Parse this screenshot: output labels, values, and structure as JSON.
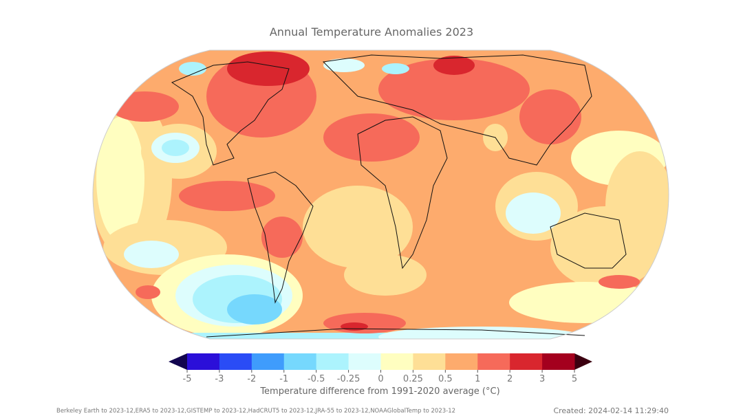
{
  "title": "Annual Temperature Anomalies 2023",
  "colorbar": {
    "label": "Temperature difference from 1991-2020 average (°C)",
    "ticks": [
      "-5",
      "-3",
      "-2",
      "-1",
      "-0.5",
      "-0.25",
      "0",
      "0.25",
      "0.5",
      "1",
      "2",
      "3",
      "5"
    ],
    "colors": [
      "#2b0fd9",
      "#2a4cf6",
      "#3f9cfc",
      "#76d8fd",
      "#acf3fd",
      "#ddfdfd",
      "#fffec0",
      "#fedf96",
      "#fdab6d",
      "#f66a5a",
      "#d9262e",
      "#a4001e"
    ],
    "under_color": "#12054f",
    "over_color": "#3c0010"
  },
  "footer": {
    "sources": "Berkeley Earth to 2023-12,ERA5 to 2023-12,GISTEMP to 2023-12,HadCRUT5 to 2023-12,JRA-55 to 2023-12,NOAAGlobalTemp to 2023-12",
    "created": "Created: 2024-02-14 11:29:40"
  }
}
